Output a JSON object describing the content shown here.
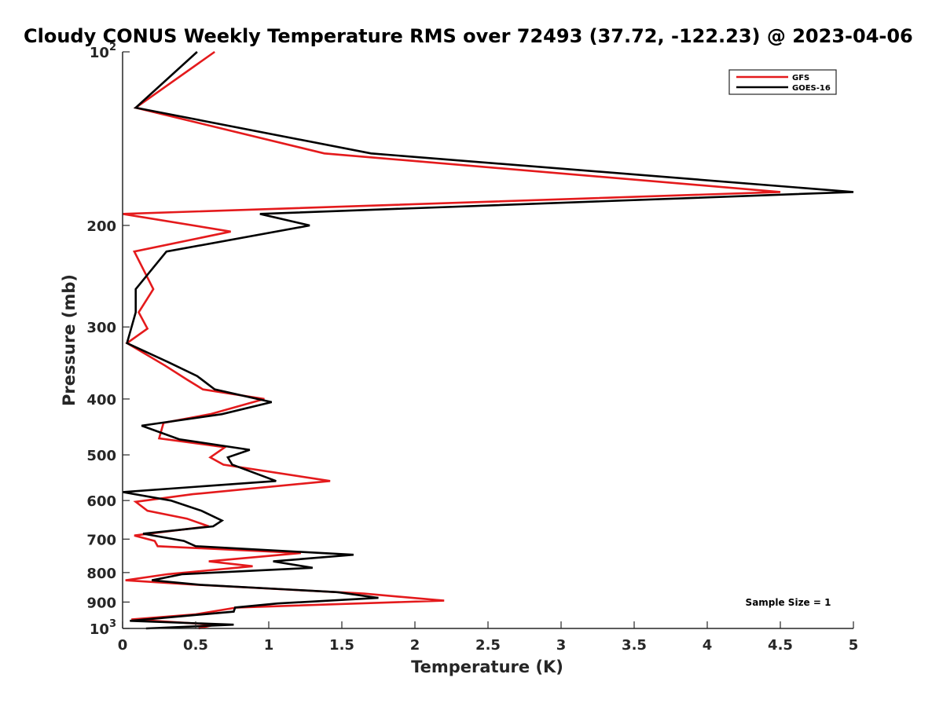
{
  "chart_data": {
    "type": "line",
    "title": "Cloudy CONUS Weekly Temperature RMS over 72493 (37.72, -122.23) @ 2023-04-06",
    "xlabel": "Temperature (K)",
    "ylabel": "Pressure (mb)",
    "xlim": [
      0,
      5
    ],
    "ylim": [
      100,
      1000
    ],
    "y_scale": "log",
    "y_reversed": true,
    "grid": false,
    "legend_position": "top-right",
    "x_ticks": [
      {
        "value": 0,
        "label": "0"
      },
      {
        "value": 0.5,
        "label": "0.5"
      },
      {
        "value": 1,
        "label": "1"
      },
      {
        "value": 1.5,
        "label": "1.5"
      },
      {
        "value": 2,
        "label": "2"
      },
      {
        "value": 2.5,
        "label": "2.5"
      },
      {
        "value": 3,
        "label": "3"
      },
      {
        "value": 3.5,
        "label": "3.5"
      },
      {
        "value": 4,
        "label": "4"
      },
      {
        "value": 4.5,
        "label": "4.5"
      },
      {
        "value": 5,
        "label": "5"
      }
    ],
    "y_ticks": [
      {
        "value": 100,
        "base": "10",
        "exp": "2"
      },
      {
        "value": 200,
        "label": "200"
      },
      {
        "value": 300,
        "label": "300"
      },
      {
        "value": 400,
        "label": "400"
      },
      {
        "value": 500,
        "label": "500"
      },
      {
        "value": 600,
        "label": "600"
      },
      {
        "value": 700,
        "label": "700"
      },
      {
        "value": 800,
        "label": "800"
      },
      {
        "value": 900,
        "label": "900"
      },
      {
        "value": 1000,
        "base": "10",
        "exp": "3"
      }
    ],
    "annotation": "Sample Size = 1",
    "series": [
      {
        "name": "GFS",
        "color": "#e41a1c",
        "points": [
          [
            0.63,
            100
          ],
          [
            0.09,
            125
          ],
          [
            1.38,
            150
          ],
          [
            4.5,
            175
          ],
          [
            0.0,
            191
          ],
          [
            0.74,
            205
          ],
          [
            0.08,
            222
          ],
          [
            0.21,
            258
          ],
          [
            0.11,
            283
          ],
          [
            0.17,
            302
          ],
          [
            0.03,
            320
          ],
          [
            0.29,
            350
          ],
          [
            0.44,
            370
          ],
          [
            0.55,
            385
          ],
          [
            0.97,
            400
          ],
          [
            0.6,
            425
          ],
          [
            0.28,
            440
          ],
          [
            0.25,
            468
          ],
          [
            0.7,
            485
          ],
          [
            0.6,
            505
          ],
          [
            0.69,
            520
          ],
          [
            1.42,
            555
          ],
          [
            0.48,
            585
          ],
          [
            0.09,
            603
          ],
          [
            0.17,
            625
          ],
          [
            0.44,
            645
          ],
          [
            0.59,
            665
          ],
          [
            0.08,
            690
          ],
          [
            0.22,
            705
          ],
          [
            0.24,
            720
          ],
          [
            1.22,
            740
          ],
          [
            0.59,
            765
          ],
          [
            0.89,
            780
          ],
          [
            0.31,
            805
          ],
          [
            0.02,
            825
          ],
          [
            0.51,
            840
          ],
          [
            1.65,
            870
          ],
          [
            2.2,
            895
          ],
          [
            0.78,
            920
          ],
          [
            0.5,
            945
          ],
          [
            0.06,
            965
          ],
          [
            0.63,
            985
          ],
          [
            0.52,
            1000
          ]
        ]
      },
      {
        "name": "GOES-16",
        "color": "#000000",
        "points": [
          [
            0.51,
            100
          ],
          [
            0.09,
            125
          ],
          [
            1.7,
            150
          ],
          [
            5.0,
            175
          ],
          [
            0.94,
            191
          ],
          [
            1.28,
            200
          ],
          [
            0.3,
            222
          ],
          [
            0.09,
            258
          ],
          [
            0.09,
            283
          ],
          [
            0.03,
            320
          ],
          [
            0.31,
            345
          ],
          [
            0.51,
            365
          ],
          [
            0.63,
            385
          ],
          [
            1.02,
            405
          ],
          [
            0.68,
            425
          ],
          [
            0.13,
            445
          ],
          [
            0.39,
            470
          ],
          [
            0.87,
            490
          ],
          [
            0.72,
            505
          ],
          [
            0.75,
            520
          ],
          [
            1.05,
            555
          ],
          [
            0.0,
            580
          ],
          [
            0.33,
            600
          ],
          [
            0.54,
            625
          ],
          [
            0.68,
            650
          ],
          [
            0.62,
            665
          ],
          [
            0.14,
            685
          ],
          [
            0.42,
            705
          ],
          [
            0.5,
            720
          ],
          [
            1.58,
            745
          ],
          [
            1.03,
            765
          ],
          [
            1.3,
            785
          ],
          [
            0.41,
            805
          ],
          [
            0.2,
            825
          ],
          [
            0.53,
            840
          ],
          [
            1.47,
            865
          ],
          [
            1.75,
            885
          ],
          [
            1.06,
            905
          ],
          [
            0.77,
            920
          ],
          [
            0.76,
            935
          ],
          [
            0.05,
            970
          ],
          [
            0.76,
            985
          ],
          [
            0.16,
            1000
          ]
        ]
      }
    ]
  }
}
